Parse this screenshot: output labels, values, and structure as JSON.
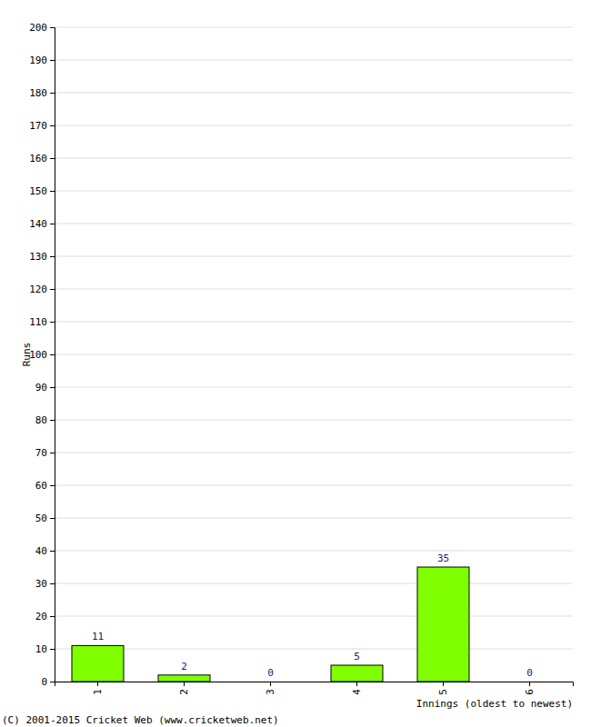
{
  "chart_data": {
    "type": "bar",
    "categories": [
      "1",
      "2",
      "3",
      "4",
      "5",
      "6"
    ],
    "values": [
      11,
      2,
      0,
      5,
      35,
      0
    ],
    "color": "#80ff00",
    "ylim": [
      0,
      200
    ],
    "yticks": [
      0,
      10,
      20,
      30,
      40,
      50,
      60,
      70,
      80,
      90,
      100,
      110,
      120,
      130,
      140,
      150,
      160,
      170,
      180,
      190,
      200
    ],
    "grid": true,
    "data_labels": true,
    "x_label": "Innings (oldest to newest)",
    "y_label": "Runs",
    "annotations": [
      "(C) 2001-2015 Cricket Web (www.cricketweb.net)"
    ]
  }
}
